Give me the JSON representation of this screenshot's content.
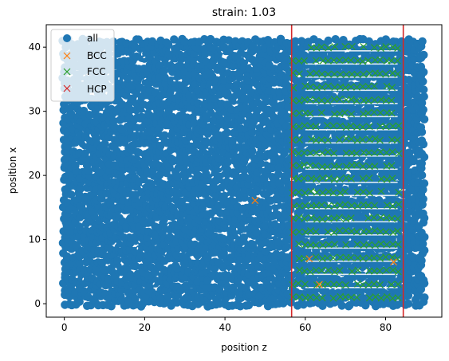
{
  "chart_data": {
    "type": "scatter",
    "title": "strain: 1.03",
    "xlabel": "position z",
    "ylabel": "position x",
    "xlim": [
      -4.5,
      94
    ],
    "ylim": [
      -2.1,
      43.5
    ],
    "xticks": [
      0,
      20,
      40,
      60,
      80
    ],
    "yticks": [
      0,
      10,
      20,
      30,
      40
    ],
    "grid": false,
    "legend_position": "top-left",
    "series": [
      {
        "name": "all",
        "marker": "circle",
        "color": "#1f77b4",
        "description_region": {
          "z_range": [
            0,
            90
          ],
          "x_range": [
            0,
            41.3
          ]
        }
      },
      {
        "name": "BCC",
        "marker": "x",
        "color": "#ff7f0e",
        "points": [
          [
            47.5,
            16.1
          ],
          [
            61,
            7.0
          ],
          [
            63.5,
            3.0
          ],
          [
            82,
            6.5
          ]
        ]
      },
      {
        "name": "FCC",
        "marker": "x",
        "color": "#2ca02c",
        "z_range": [
          57,
          84
        ],
        "x_range": [
          1,
          41
        ]
      },
      {
        "name": "HCP",
        "marker": "x",
        "color": "#d62728",
        "points": []
      }
    ],
    "vlines": [
      {
        "x": 56.6,
        "color": "#d62728"
      },
      {
        "x": 84.4,
        "color": "#d62728"
      }
    ]
  }
}
